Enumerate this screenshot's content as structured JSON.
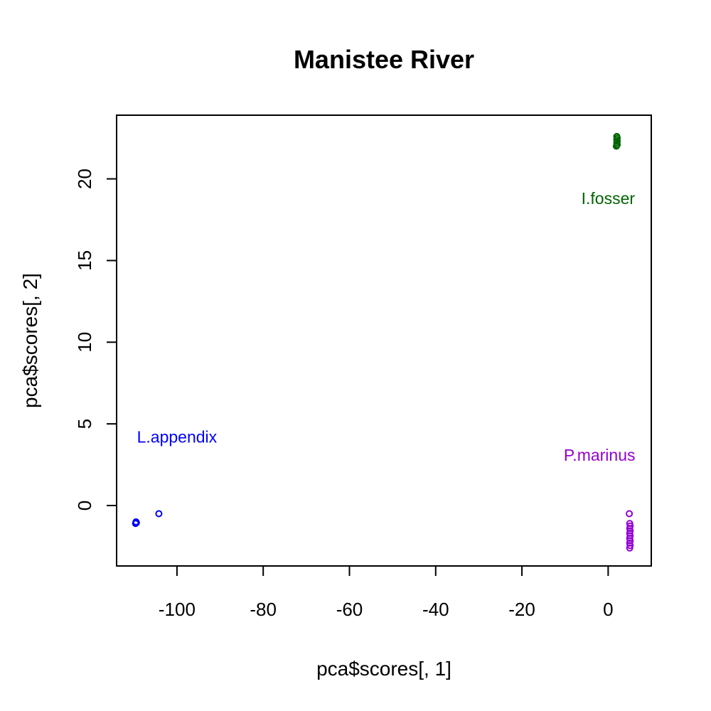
{
  "chart_data": {
    "type": "scatter",
    "title": "Manistee River",
    "xlabel": "pca$scores[, 1]",
    "ylabel": "pca$scores[, 2]",
    "xlim": [
      -114,
      10
    ],
    "ylim": [
      -3.7,
      23.9
    ],
    "xticks": [
      -100,
      -80,
      -60,
      -40,
      -20,
      0
    ],
    "yticks": [
      0,
      5,
      10,
      15,
      20
    ],
    "grid": false,
    "series": [
      {
        "color": "#0000ff",
        "points": [
          [
            -109.6,
            -1.1
          ],
          [
            -109.4,
            -1.05
          ],
          [
            -109.5,
            -1.0
          ],
          [
            -104.2,
            -0.5
          ]
        ]
      },
      {
        "color": "#006400",
        "points": [
          [
            2.0,
            22.6
          ],
          [
            2.1,
            22.5
          ],
          [
            2.0,
            22.4
          ],
          [
            2.1,
            22.3
          ],
          [
            2.0,
            22.2
          ],
          [
            2.1,
            22.1
          ],
          [
            2.0,
            22.05
          ],
          [
            1.9,
            22.0
          ]
        ]
      },
      {
        "color": "#9400d3",
        "points": [
          [
            4.9,
            -0.5
          ],
          [
            5.0,
            -1.1
          ],
          [
            5.1,
            -1.25
          ],
          [
            5.0,
            -1.4
          ],
          [
            5.1,
            -1.55
          ],
          [
            5.0,
            -1.7
          ],
          [
            5.1,
            -1.85
          ],
          [
            5.0,
            -2.0
          ],
          [
            5.1,
            -2.15
          ],
          [
            5.0,
            -2.3
          ],
          [
            5.1,
            -2.45
          ],
          [
            5.0,
            -2.6
          ]
        ]
      }
    ],
    "annotations": [
      {
        "text": "L.appendix",
        "x": -100,
        "y": 4.2,
        "color": "#0000ff"
      },
      {
        "text": "I.fosser",
        "x": 0,
        "y": 18.8,
        "color": "#006400"
      },
      {
        "text": "P.marinus",
        "x": -2,
        "y": 3.1,
        "color": "#9400d3"
      }
    ]
  }
}
